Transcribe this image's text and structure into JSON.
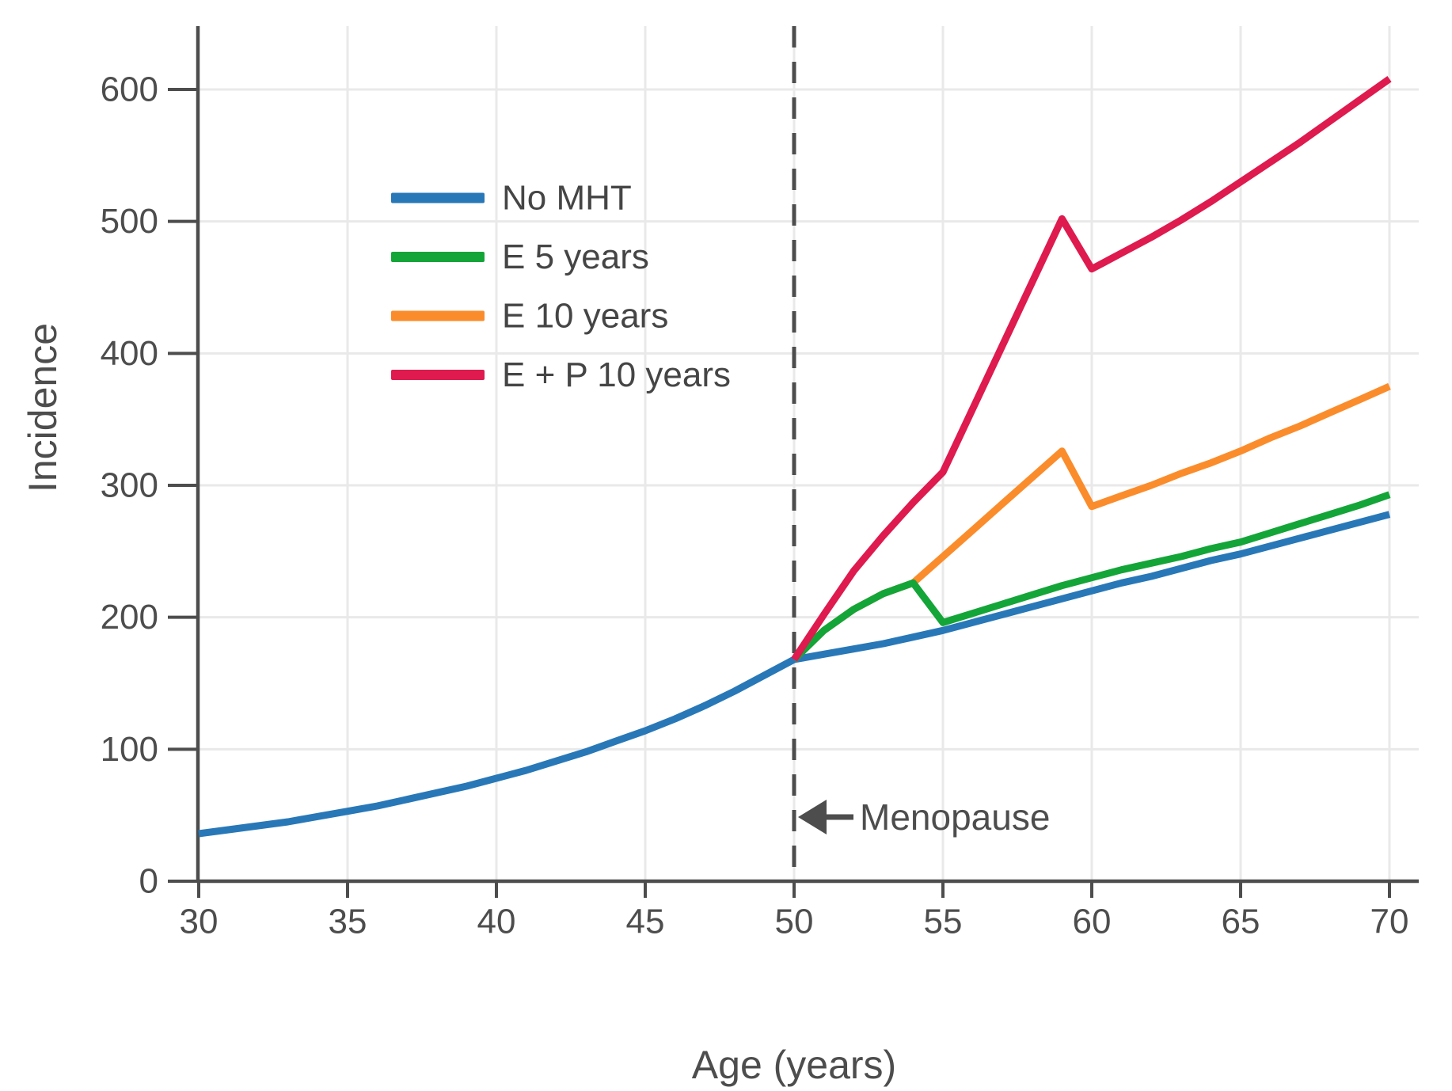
{
  "chart_data": {
    "type": "line",
    "title": "",
    "xlabel": "Age (years)",
    "ylabel": "Incidence",
    "x_ticks": [
      30,
      35,
      40,
      45,
      50,
      55,
      60,
      65,
      70
    ],
    "y_ticks": [
      0,
      100,
      200,
      300,
      400,
      500,
      600
    ],
    "xlim": [
      30,
      70
    ],
    "ylim": [
      0,
      600
    ],
    "grid": true,
    "legend_position": "upper-left-inside",
    "series": [
      {
        "name": "No MHT",
        "color": "#2878b8",
        "points": [
          [
            30,
            36
          ],
          [
            31,
            39
          ],
          [
            32,
            42
          ],
          [
            33,
            45
          ],
          [
            34,
            49
          ],
          [
            35,
            53
          ],
          [
            36,
            57
          ],
          [
            37,
            62
          ],
          [
            38,
            67
          ],
          [
            39,
            72
          ],
          [
            40,
            78
          ],
          [
            41,
            84
          ],
          [
            42,
            91
          ],
          [
            43,
            98
          ],
          [
            44,
            106
          ],
          [
            45,
            114
          ],
          [
            46,
            123
          ],
          [
            47,
            133
          ],
          [
            48,
            144
          ],
          [
            49,
            156
          ],
          [
            50,
            168
          ],
          [
            51,
            172
          ],
          [
            52,
            176
          ],
          [
            53,
            180
          ],
          [
            54,
            185
          ],
          [
            55,
            190
          ],
          [
            56,
            196
          ],
          [
            57,
            202
          ],
          [
            58,
            208
          ],
          [
            59,
            214
          ],
          [
            60,
            220
          ],
          [
            61,
            226
          ],
          [
            62,
            231
          ],
          [
            63,
            237
          ],
          [
            64,
            243
          ],
          [
            65,
            248
          ],
          [
            66,
            254
          ],
          [
            67,
            260
          ],
          [
            68,
            266
          ],
          [
            69,
            272
          ],
          [
            70,
            278
          ]
        ]
      },
      {
        "name": "E 5 years",
        "color": "#14a538",
        "points": [
          [
            50,
            168
          ],
          [
            51,
            190
          ],
          [
            52,
            206
          ],
          [
            53,
            218
          ],
          [
            54,
            226
          ],
          [
            55,
            196
          ],
          [
            56,
            203
          ],
          [
            57,
            210
          ],
          [
            58,
            217
          ],
          [
            59,
            224
          ],
          [
            60,
            230
          ],
          [
            61,
            236
          ],
          [
            62,
            241
          ],
          [
            63,
            246
          ],
          [
            64,
            252
          ],
          [
            65,
            257
          ],
          [
            66,
            264
          ],
          [
            67,
            271
          ],
          [
            68,
            278
          ],
          [
            69,
            285
          ],
          [
            70,
            293
          ]
        ]
      },
      {
        "name": "E 10 years",
        "color": "#fb8c2b",
        "points": [
          [
            50,
            168
          ],
          [
            51,
            190
          ],
          [
            52,
            206
          ],
          [
            53,
            218
          ],
          [
            54,
            226
          ],
          [
            55,
            246
          ],
          [
            56,
            266
          ],
          [
            57,
            286
          ],
          [
            58,
            306
          ],
          [
            59,
            326
          ],
          [
            60,
            284
          ],
          [
            61,
            292
          ],
          [
            62,
            300
          ],
          [
            63,
            309
          ],
          [
            64,
            317
          ],
          [
            65,
            326
          ],
          [
            66,
            336
          ],
          [
            67,
            345
          ],
          [
            68,
            355
          ],
          [
            69,
            365
          ],
          [
            70,
            375
          ]
        ]
      },
      {
        "name": "E + P 10 years",
        "color": "#de1a4e",
        "points": [
          [
            50,
            168
          ],
          [
            51,
            202
          ],
          [
            52,
            235
          ],
          [
            53,
            262
          ],
          [
            54,
            287
          ],
          [
            55,
            310
          ],
          [
            56,
            358
          ],
          [
            57,
            406
          ],
          [
            58,
            454
          ],
          [
            59,
            502
          ],
          [
            60,
            464
          ],
          [
            61,
            476
          ],
          [
            62,
            488
          ],
          [
            63,
            501
          ],
          [
            64,
            515
          ],
          [
            65,
            530
          ],
          [
            66,
            545
          ],
          [
            67,
            560
          ],
          [
            68,
            576
          ],
          [
            69,
            592
          ],
          [
            70,
            608
          ]
        ]
      }
    ],
    "annotations": {
      "menopause": {
        "label": "Menopause",
        "line_x": 50,
        "line_style": "dashed",
        "arrow_direction": "left"
      }
    },
    "colors": {
      "spine": "#4d4d4d",
      "grid": "#e9e9e9",
      "tick_label": "#4d4d4d",
      "axis_label": "#4d4d4d",
      "legend_text": "#454545",
      "annotation": "#4d4d4d",
      "background": "#ffffff"
    }
  }
}
